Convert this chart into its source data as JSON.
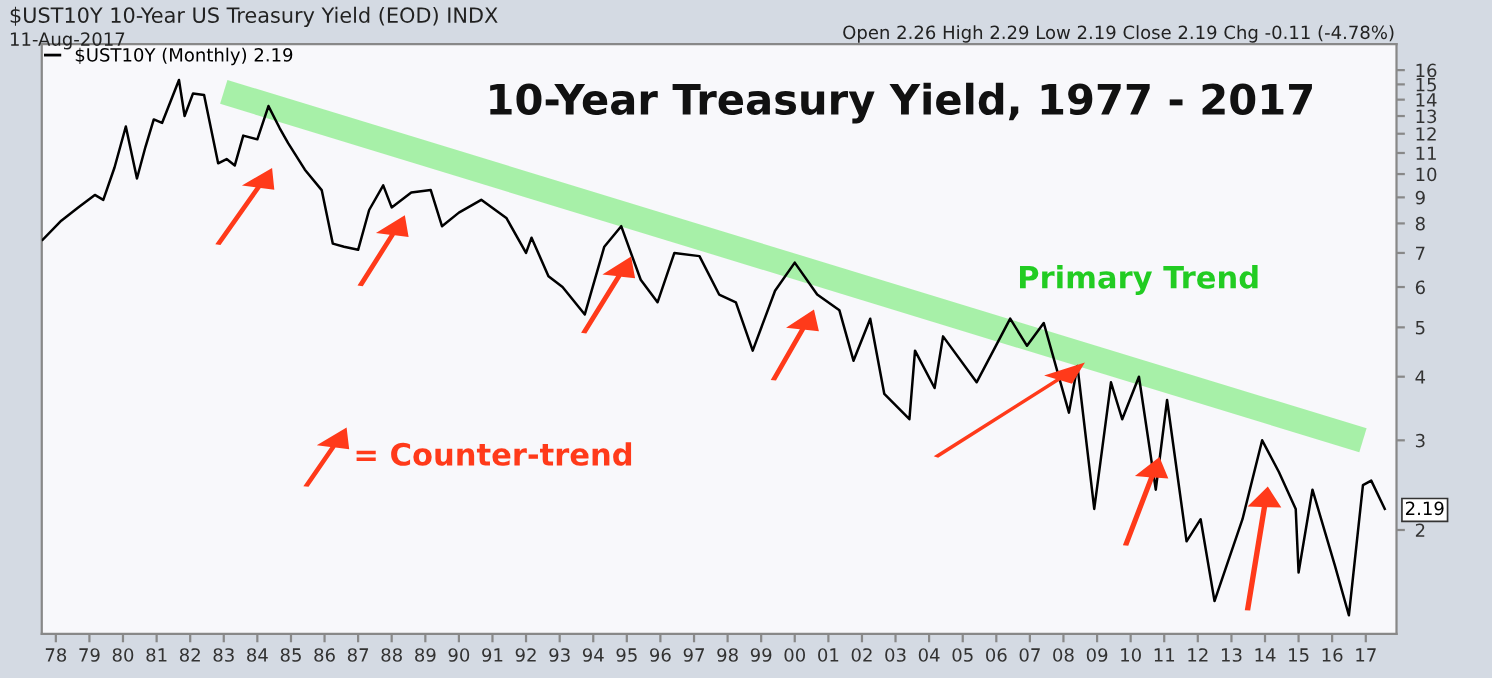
{
  "chart_data": {
    "type": "line",
    "title": "10-Year Treasury Yield, 1977 - 2017",
    "annotations": [
      "$UST10Y 10-Year US Treasury Yield (EOD) INDX",
      "11-Aug-2017",
      "Open 2.26 High 2.29 Low 2.19 Close 2.19 Chg -0.11 (-4.78%)",
      "Primary Trend",
      "= Counter-trend",
      {
        "text": "2.19",
        "x": "2017-08",
        "y": 2.19
      }
    ],
    "series": [
      {
        "name": "$UST10Y (Monthly) 2.19",
        "color": "#000000",
        "x": [
          "1977-08",
          "1978-03",
          "1978-09",
          "1979-03",
          "1979-06",
          "1979-10",
          "1980-02",
          "1980-06",
          "1980-09",
          "1980-12",
          "1981-03",
          "1981-09",
          "1981-11",
          "1982-02",
          "1982-06",
          "1982-11",
          "1983-02",
          "1983-05",
          "1983-08",
          "1984-01",
          "1984-05",
          "1984-09",
          "1984-12",
          "1985-06",
          "1985-12",
          "1986-04",
          "1986-08",
          "1987-01",
          "1987-05",
          "1987-10",
          "1988-01",
          "1988-08",
          "1989-03",
          "1989-07",
          "1990-01",
          "1990-09",
          "1991-06",
          "1992-01",
          "1992-03",
          "1992-09",
          "1993-02",
          "1993-10",
          "1994-05",
          "1994-11",
          "1995-06",
          "1995-12",
          "1996-06",
          "1997-03",
          "1997-10",
          "1998-04",
          "1998-10",
          "1999-06",
          "2000-01",
          "2000-09",
          "2001-05",
          "2001-10",
          "2002-04",
          "2002-09",
          "2003-06",
          "2003-08",
          "2004-03",
          "2004-06",
          "2005-06",
          "2006-06",
          "2006-12",
          "2007-06",
          "2008-03",
          "2008-06",
          "2008-12",
          "2009-06",
          "2009-10",
          "2010-04",
          "2010-10",
          "2011-02",
          "2011-09",
          "2012-02",
          "2012-07",
          "2013-05",
          "2013-12",
          "2014-06",
          "2014-12",
          "2015-01",
          "2015-06",
          "2016-02",
          "2016-07",
          "2016-12",
          "2017-03",
          "2017-08"
        ],
        "values": [
          7.4,
          8.1,
          8.6,
          9.1,
          8.9,
          10.3,
          12.4,
          9.8,
          11.3,
          12.8,
          12.6,
          15.3,
          13.0,
          14.4,
          14.3,
          10.5,
          10.7,
          10.4,
          11.9,
          11.7,
          13.6,
          12.3,
          11.5,
          10.2,
          9.3,
          7.3,
          7.2,
          7.1,
          8.5,
          9.5,
          8.6,
          9.2,
          9.3,
          7.9,
          8.4,
          8.9,
          8.2,
          7.0,
          7.5,
          6.3,
          6.0,
          5.3,
          7.2,
          7.9,
          6.2,
          5.6,
          7.0,
          6.9,
          5.8,
          5.6,
          4.5,
          5.9,
          6.7,
          5.8,
          5.4,
          4.3,
          5.2,
          3.7,
          3.3,
          4.5,
          3.8,
          4.8,
          3.9,
          5.2,
          4.6,
          5.1,
          3.4,
          4.2,
          2.2,
          3.9,
          3.3,
          4.0,
          2.4,
          3.6,
          1.9,
          2.1,
          1.45,
          2.1,
          3.0,
          2.6,
          2.2,
          1.65,
          2.4,
          1.7,
          1.36,
          2.45,
          2.5,
          2.19
        ]
      },
      {
        "color": "#99ee99",
        "x": [
          "1983-01",
          "2016-12"
        ],
        "values": [
          14.5,
          3.0
        ]
      }
    ],
    "log": true,
    "ylim": [
      1.25,
      18
    ],
    "yticks": [
      2,
      3,
      4,
      5,
      6,
      7,
      8,
      9,
      10,
      11,
      12,
      13,
      14,
      15,
      16
    ],
    "xlim": [
      "1977-08",
      "2017-12"
    ],
    "xticks": [
      {
        "value": "1978",
        "label": "78"
      },
      {
        "value": "1979",
        "label": "79"
      },
      {
        "value": "1980",
        "label": "80"
      },
      {
        "value": "1981",
        "label": "81"
      },
      {
        "value": "1982",
        "label": "82"
      },
      {
        "value": "1983",
        "label": "83"
      },
      {
        "value": "1984",
        "label": "84"
      },
      {
        "value": "1985",
        "label": "85"
      },
      {
        "value": "1986",
        "label": "86"
      },
      {
        "value": "1987",
        "label": "87"
      },
      {
        "value": "1988",
        "label": "88"
      },
      {
        "value": "1989",
        "label": "89"
      },
      {
        "value": "1990",
        "label": "90"
      },
      {
        "value": "1991",
        "label": "91"
      },
      {
        "value": "1992",
        "label": "92"
      },
      {
        "value": "1993",
        "label": "93"
      },
      {
        "value": "1994",
        "label": "94"
      },
      {
        "value": "1995",
        "label": "95"
      },
      {
        "value": "1996",
        "label": "96"
      },
      {
        "value": "1997",
        "label": "97"
      },
      {
        "value": "1998",
        "label": "98"
      },
      {
        "value": "1999",
        "label": "99"
      },
      {
        "value": "2000",
        "label": "00"
      },
      {
        "value": "2001",
        "label": "01"
      },
      {
        "value": "2002",
        "label": "02"
      },
      {
        "value": "2003",
        "label": "03"
      },
      {
        "value": "2004",
        "label": "04"
      },
      {
        "value": "2005",
        "label": "05"
      },
      {
        "value": "2006",
        "label": "06"
      },
      {
        "value": "2007",
        "label": "07"
      },
      {
        "value": "2008",
        "label": "08"
      },
      {
        "value": "2009",
        "label": "09"
      },
      {
        "value": "2010",
        "label": "10"
      },
      {
        "value": "2011",
        "label": "11"
      },
      {
        "value": "2012",
        "label": "12"
      },
      {
        "value": "2013",
        "label": "13"
      },
      {
        "value": "2014",
        "label": "14"
      },
      {
        "value": "2015",
        "label": "15"
      },
      {
        "value": "2016",
        "label": "16"
      },
      {
        "value": "2017",
        "label": "17"
      }
    ],
    "legend": "top left",
    "grid": false
  }
}
